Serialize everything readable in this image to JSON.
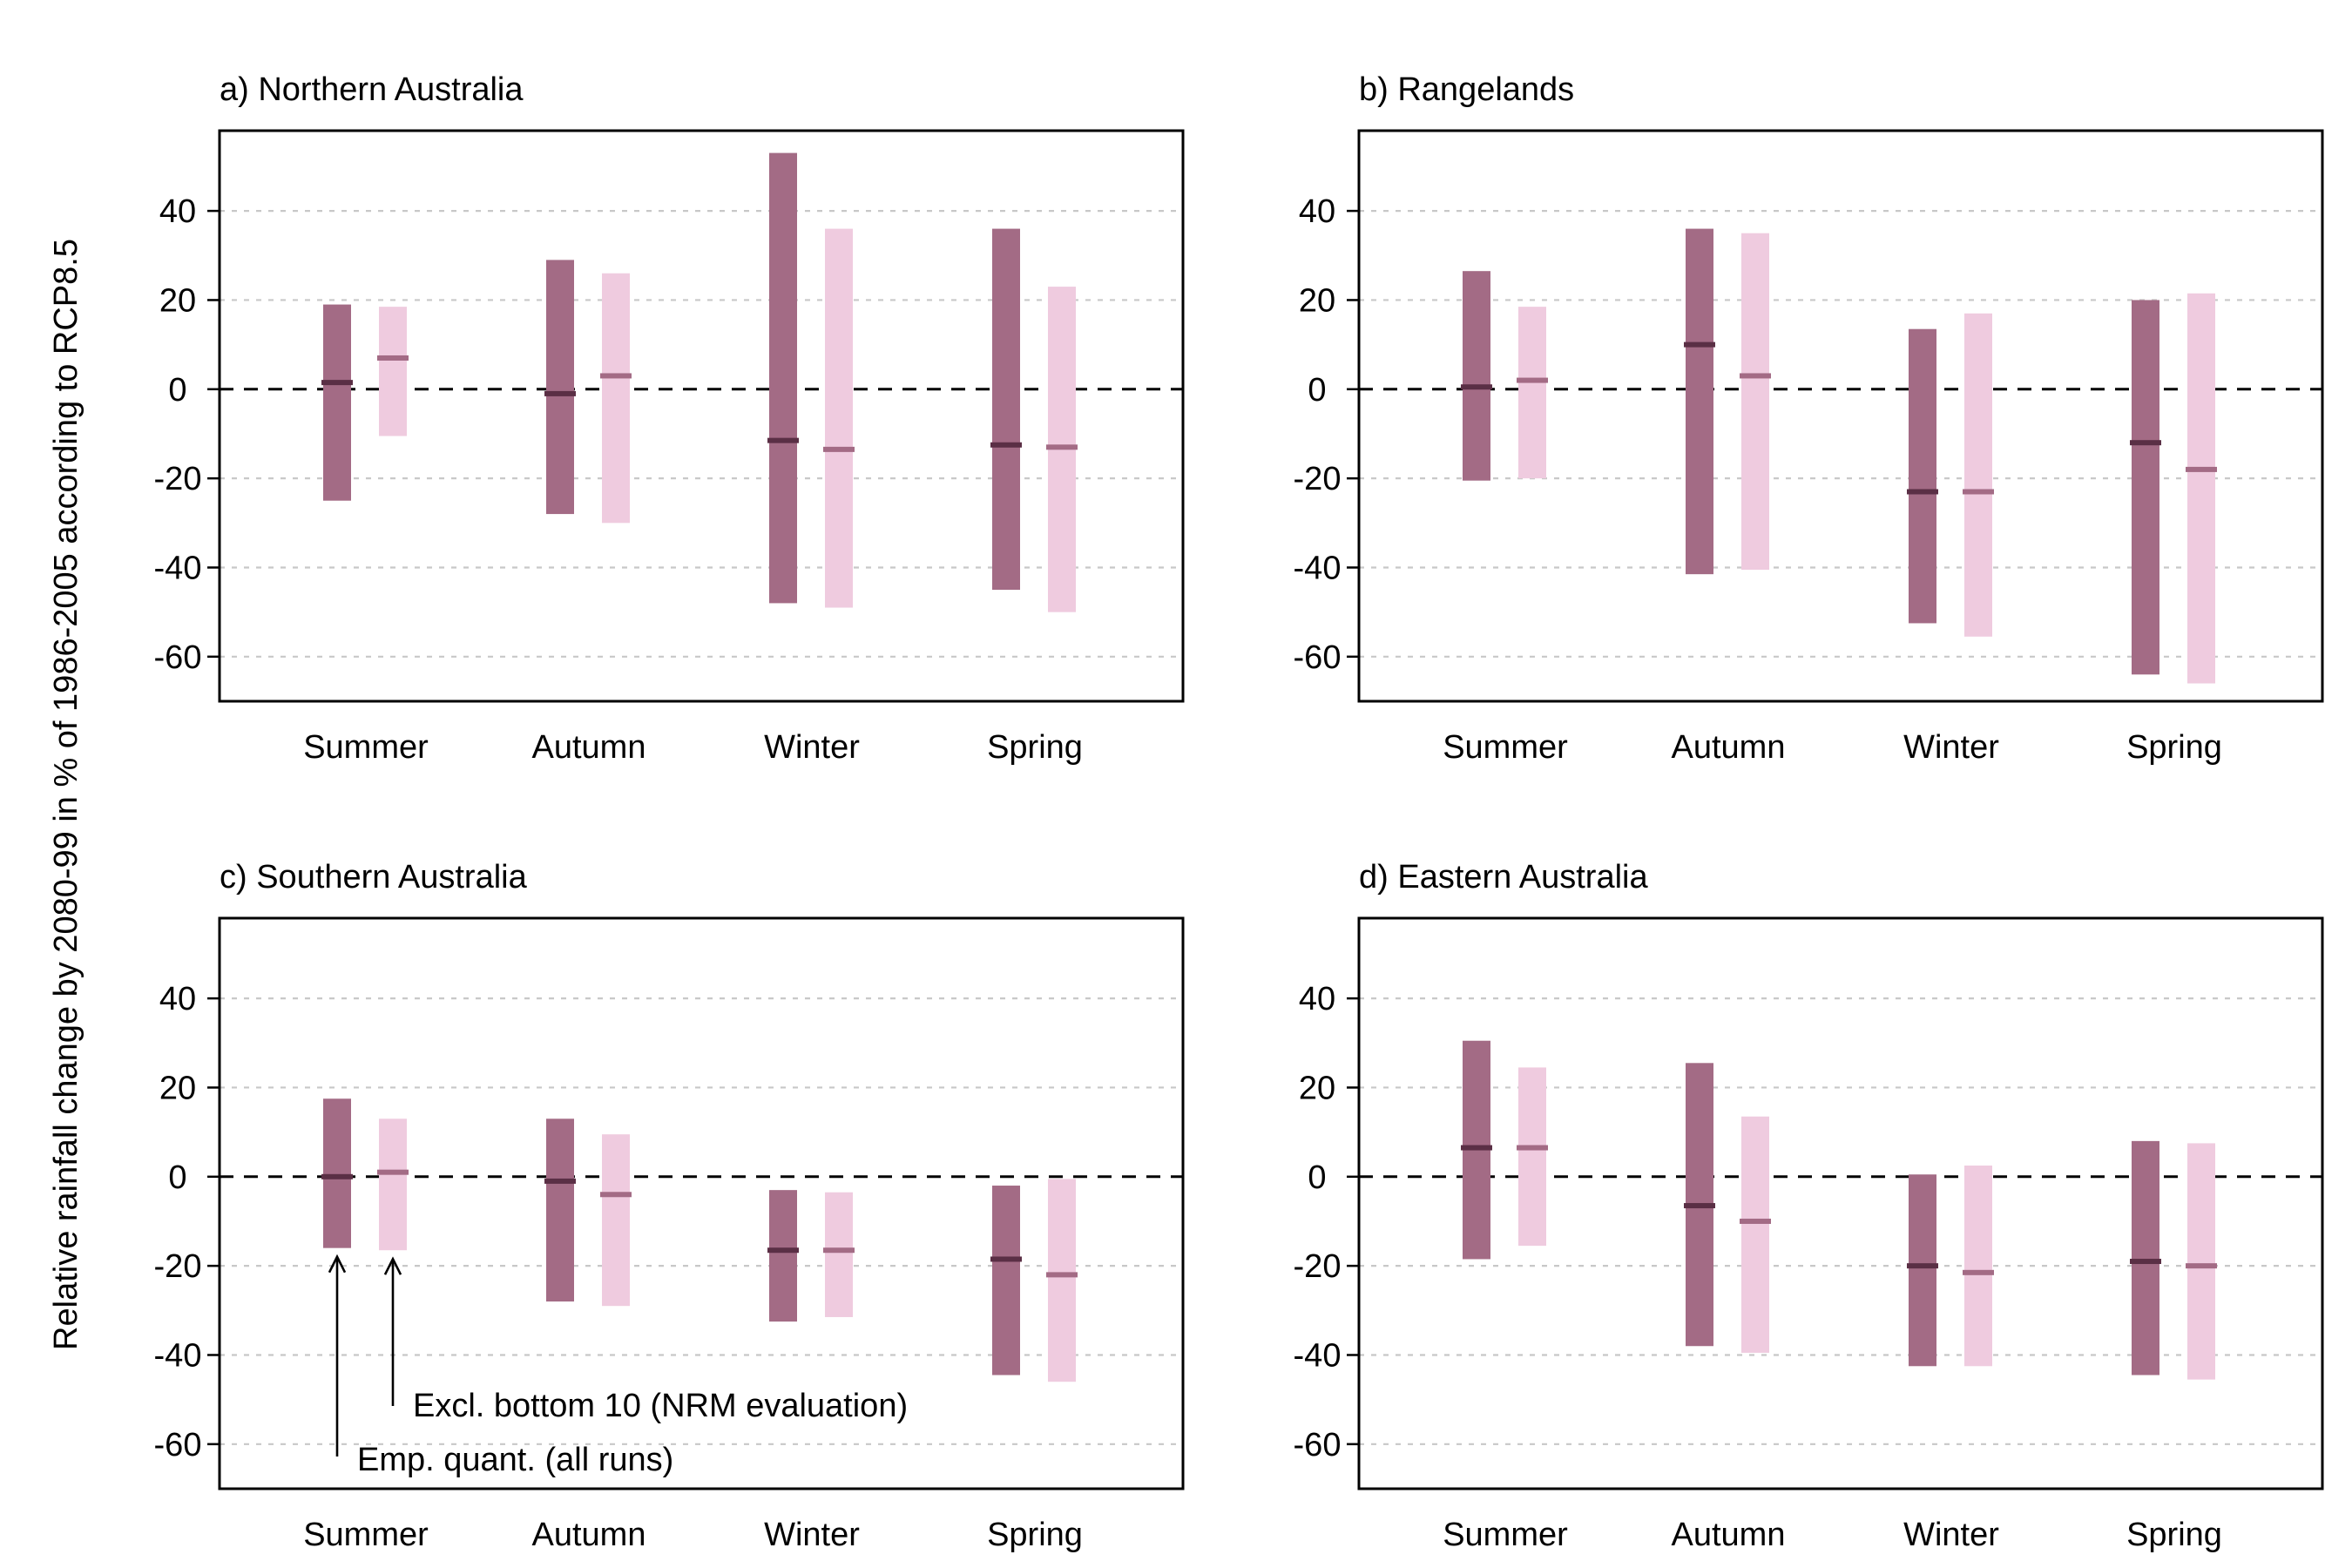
{
  "figure": {
    "ylabel": "Relative rainfall change by 2080-99 in % of 1986-2005 according to RCP8.5",
    "colors": {
      "all_runs": "#a36b85",
      "all_runs_median": "#5a2f45",
      "excl_bottom10": "#efcbdf",
      "excl_bottom10_median": "#a36b85"
    }
  },
  "chart_data": [
    {
      "type": "bar",
      "title": "a) Northern Australia",
      "categories": [
        "Summer",
        "Autumn",
        "Winter",
        "Spring"
      ],
      "yticks": [
        40,
        20,
        0,
        -20,
        -40,
        -60
      ],
      "ytick_labels": [
        "40",
        "20",
        "0",
        "-20",
        "-40",
        "-60"
      ],
      "ylim": [
        -70,
        58
      ],
      "series": [
        {
          "key": "all_runs",
          "low": [
            -25,
            -28,
            -48,
            -45
          ],
          "high": [
            19,
            29,
            53,
            36
          ],
          "median": [
            1.5,
            -1,
            -11.5,
            -12.5
          ]
        },
        {
          "key": "excl_bottom10",
          "low": [
            -10.5,
            -30,
            -49,
            -50
          ],
          "high": [
            18.5,
            26,
            36,
            23
          ],
          "median": [
            7,
            3,
            -13.5,
            -13
          ]
        }
      ]
    },
    {
      "type": "bar",
      "title": "b) Rangelands",
      "categories": [
        "Summer",
        "Autumn",
        "Winter",
        "Spring"
      ],
      "yticks": [
        40,
        20,
        0,
        -20,
        -40,
        -60
      ],
      "ytick_labels": [
        "40",
        "20",
        "0",
        "-20",
        "-40",
        "-60"
      ],
      "ylim": [
        -70,
        58
      ],
      "series": [
        {
          "key": "all_runs",
          "low": [
            -20.5,
            -41.5,
            -52.5,
            -64
          ],
          "high": [
            26.5,
            36,
            13.5,
            20
          ],
          "median": [
            0.5,
            10,
            -23,
            -12
          ]
        },
        {
          "key": "excl_bottom10",
          "low": [
            -20,
            -40.5,
            -55.5,
            -66
          ],
          "high": [
            18.5,
            35,
            17,
            21.5
          ],
          "median": [
            2,
            3,
            -23,
            -18
          ]
        }
      ]
    },
    {
      "type": "bar",
      "title": "c) Southern Australia",
      "categories": [
        "Summer",
        "Autumn",
        "Winter",
        "Spring"
      ],
      "yticks": [
        40,
        20,
        0,
        -20,
        -40,
        -60
      ],
      "ytick_labels": [
        "40",
        "20",
        "0",
        "-20",
        "-40",
        "-60"
      ],
      "ylim": [
        -70,
        58
      ],
      "series": [
        {
          "key": "all_runs",
          "low": [
            -16,
            -28,
            -32.5,
            -44.5
          ],
          "high": [
            17.5,
            13,
            -3,
            -2
          ],
          "median": [
            0,
            -1,
            -16.5,
            -18.5
          ]
        },
        {
          "key": "excl_bottom10",
          "low": [
            -16.5,
            -29,
            -31.5,
            -46
          ],
          "high": [
            13,
            9.5,
            -3.5,
            -0.5
          ],
          "median": [
            1,
            -4,
            -16.5,
            -22
          ]
        }
      ],
      "annotations": [
        {
          "text": "Excl. bottom 10 (NRM evaluation)",
          "category": "Summer",
          "series": "excl_bottom10"
        },
        {
          "text": "Emp. quant. (all runs)",
          "category": "Summer",
          "series": "all_runs"
        }
      ]
    },
    {
      "type": "bar",
      "title": "d) Eastern Australia",
      "categories": [
        "Summer",
        "Autumn",
        "Winter",
        "Spring"
      ],
      "yticks": [
        40,
        20,
        0,
        -20,
        -40,
        -60
      ],
      "ytick_labels": [
        "40",
        "20",
        "0",
        "-20",
        "-40",
        "-60"
      ],
      "ylim": [
        -70,
        58
      ],
      "series": [
        {
          "key": "all_runs",
          "low": [
            -18.5,
            -38,
            -42.5,
            -44.5
          ],
          "high": [
            30.5,
            25.5,
            0.5,
            8
          ],
          "median": [
            6.5,
            -6.5,
            -20,
            -19
          ]
        },
        {
          "key": "excl_bottom10",
          "low": [
            -15.5,
            -39.5,
            -42.5,
            -45.5
          ],
          "high": [
            24.5,
            13.5,
            2.5,
            7.5
          ],
          "median": [
            6.5,
            -10,
            -21.5,
            -20
          ]
        }
      ]
    }
  ]
}
